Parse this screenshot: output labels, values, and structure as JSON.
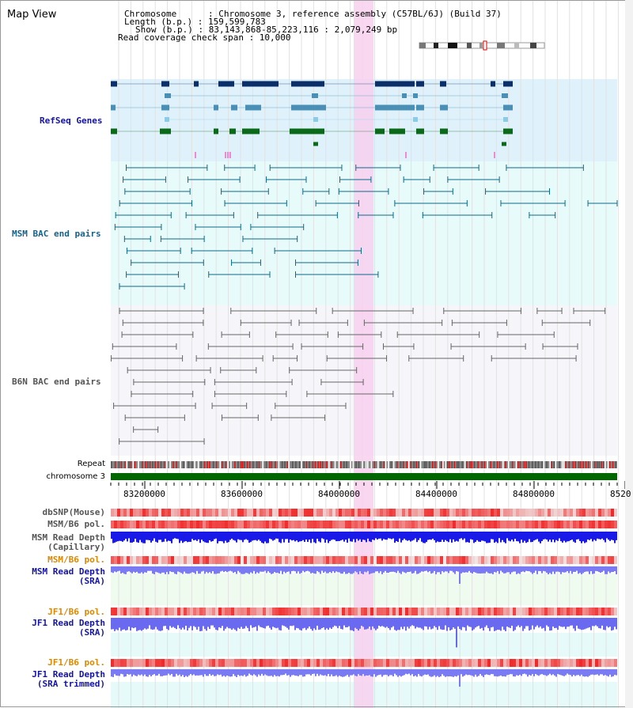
{
  "view_title": "Map View",
  "header": {
    "chromosome_line": "Chromosome      : Chromosome 3, reference assembly (C57BL/6J) (Build 37)",
    "length_line": "Length (b.p.) : 159,599,783",
    "show_line": "Show (b.p.) : 83,143,868-85,223,116 : 2,079,249 bp",
    "coverage_line": "Read coverage check span : 10,000"
  },
  "tracks": {
    "refseq": "RefSeq Genes",
    "msm_bac": "MSM BAC end pairs",
    "b6n_bac": "B6N BAC end pairs",
    "repeat": "Repeat",
    "chromosome": "chromosome 3",
    "dbsnp": "dbSNP(Mouse)",
    "msm_b6_pol": "MSM/B6 pol.",
    "msm_depth_cap_1": "MSM Read Depth",
    "msm_depth_cap_2": "(Capillary)",
    "msm_b6_pol2": "MSM/B6 pol.",
    "msm_depth_sra_1": "MSM Read Depth",
    "msm_depth_sra_2": "(SRA)",
    "jf1_b6_pol": "JF1/B6 pol.",
    "jf1_depth_sra_1": "JF1 Read Depth",
    "jf1_depth_sra_2": "(SRA)",
    "jf1_b6_pol2": "JF1/B6 pol.",
    "jf1_depth_trim_1": "JF1 Read Depth",
    "jf1_depth_trim_2": "(SRA trimmed)"
  },
  "axis_ticks": [
    "83200000",
    "83600000",
    "84000000",
    "84400000",
    "84800000",
    "8520"
  ],
  "colors": {
    "refseq_bg": "#dff1fb",
    "msm_bg": "#e8fbfb",
    "b6n_bg": "#f5f5fa",
    "chrom": "#006600",
    "highlight": "#f8d0ee",
    "refseq_dark": "#0b2f68",
    "refseq_mid": "#4a8fb5",
    "refseq_green": "#0a6a1a",
    "msm_pair": "#0b6a8a",
    "b6n_pair": "#666666",
    "label_blue": "#1414a0",
    "label_teal": "#17628a",
    "label_orange": "#dd8800",
    "label_gray": "#555555"
  }
}
